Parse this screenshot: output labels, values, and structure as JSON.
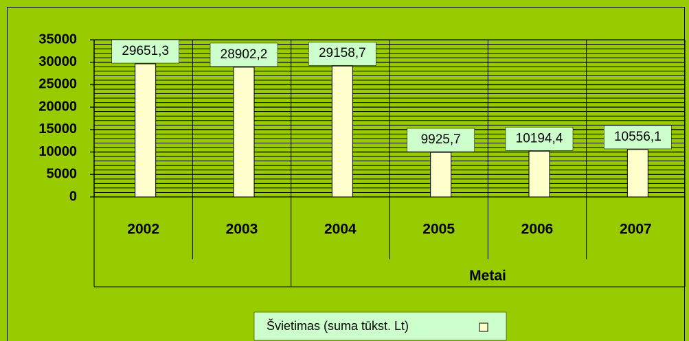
{
  "chart_data": {
    "type": "bar",
    "x_label": "Metai",
    "categories": [
      "2002",
      "2003",
      "2004",
      "2005",
      "2006",
      "2007"
    ],
    "series": [
      {
        "name": "Švietimas (suma tūkst. Lt)",
        "color": "#ffffcc",
        "values": [
          29651.3,
          28902.2,
          29158.7,
          9925.7,
          10194.4,
          10556.1
        ],
        "value_labels": [
          "29651,3",
          "28902,2",
          "29158,7",
          "9925,7",
          "10194,4",
          "10556,1"
        ]
      }
    ],
    "ylim": [
      0,
      35000
    ],
    "yticks": [
      0,
      5000,
      10000,
      15000,
      20000,
      25000,
      30000,
      35000
    ],
    "grid": true,
    "legend": "bottom"
  }
}
